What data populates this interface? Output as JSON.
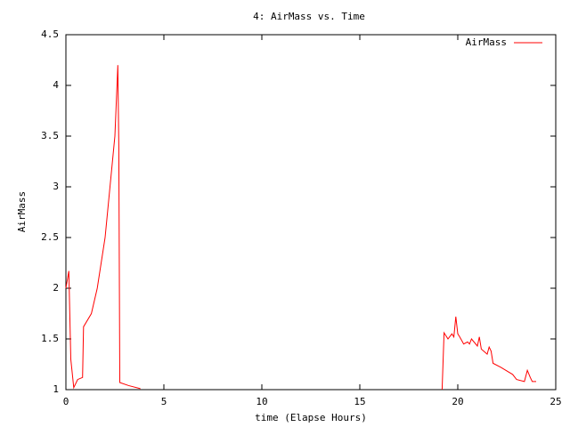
{
  "chart_data": {
    "type": "line",
    "title": "4: AirMass vs. Time",
    "xlabel": "time (Elapse Hours)",
    "ylabel": "AirMass",
    "xlim": [
      0,
      25
    ],
    "xticks": [
      0,
      5,
      10,
      15,
      20,
      25
    ],
    "ylim": [
      1,
      4.5
    ],
    "yticks": [
      1,
      1.5,
      2,
      2.5,
      3,
      3.5,
      4,
      4.5
    ],
    "legend": "top-right",
    "x": [
      0,
      0.15,
      0.25,
      0.4,
      0.6,
      0.85,
      0.9,
      1.3,
      1.6,
      2.0,
      2.25,
      2.5,
      2.65,
      2.7,
      2.75,
      3.2,
      3.8,
      null,
      19.2,
      19.3,
      19.5,
      19.7,
      19.8,
      19.9,
      20.0,
      20.1,
      20.3,
      20.5,
      20.6,
      20.7,
      21.0,
      21.1,
      21.2,
      21.5,
      21.6,
      21.7,
      21.8,
      22.2,
      22.8,
      23.0,
      23.4,
      23.55,
      23.7,
      23.8,
      24.0
    ],
    "series": [
      {
        "name": "AirMass",
        "color": "#ff0000",
        "values": [
          2.0,
          2.17,
          1.3,
          1.02,
          1.1,
          1.12,
          1.62,
          1.75,
          2.0,
          2.5,
          3.0,
          3.5,
          4.2,
          3.4,
          1.07,
          1.04,
          1.01,
          null,
          1.0,
          1.56,
          1.5,
          1.55,
          1.52,
          1.72,
          1.55,
          1.52,
          1.45,
          1.47,
          1.45,
          1.5,
          1.43,
          1.52,
          1.4,
          1.35,
          1.42,
          1.38,
          1.26,
          1.22,
          1.15,
          1.1,
          1.08,
          1.19,
          1.12,
          1.08,
          1.08
        ]
      }
    ]
  }
}
